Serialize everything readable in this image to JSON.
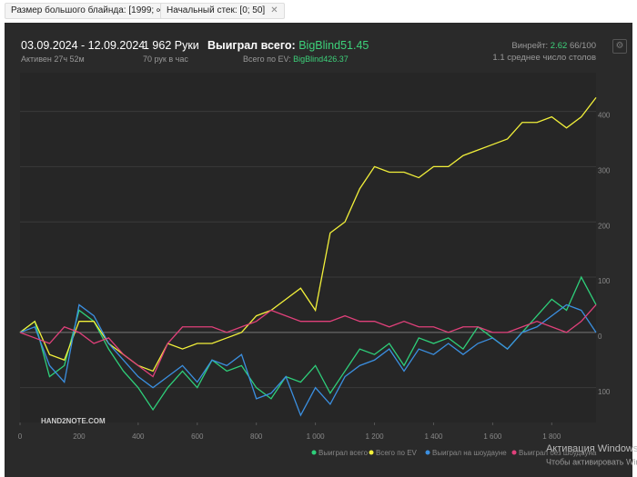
{
  "filters": [
    "Размер большого блайнда: [1999; ∞)",
    "Начальный стек: [0; 50]"
  ],
  "header": {
    "dates": "03.09.2024 - 12.09.2024",
    "active": "Активен 27ч 52м",
    "hands": "1 962 Руки",
    "rate": "70 рук в час",
    "won_label": "Выиграл всего:",
    "won_value": "BigBlind51.45",
    "ev_label": "Всего по EV:",
    "ev_value": "BigBlind426.37",
    "winrate_label": "Винрейт:",
    "winrate_value": "2.62",
    "winrate_range": "66/100",
    "tables": "1.1 среднее число столов"
  },
  "logo": "HAND2NOTE.COM",
  "watermark": [
    "Активация Windows",
    "Чтобы активировать Windows"
  ],
  "chart_data": {
    "type": "line",
    "x": [
      0,
      50,
      100,
      150,
      200,
      250,
      300,
      350,
      400,
      450,
      500,
      550,
      600,
      650,
      700,
      750,
      800,
      850,
      900,
      950,
      1000,
      1050,
      1100,
      1150,
      1200,
      1250,
      1300,
      1350,
      1400,
      1450,
      1500,
      1550,
      1600,
      1650,
      1700,
      1750,
      1800,
      1850,
      1900,
      1950
    ],
    "series": [
      {
        "name": "Выиграл всего",
        "color": "#2ecf7a",
        "values": [
          0,
          20,
          -80,
          -60,
          40,
          20,
          -30,
          -70,
          -100,
          -140,
          -100,
          -70,
          -100,
          -50,
          -70,
          -60,
          -100,
          -120,
          -80,
          -90,
          -60,
          -110,
          -70,
          -30,
          -40,
          -20,
          -60,
          -10,
          -20,
          -10,
          -30,
          10,
          -10,
          -30,
          0,
          30,
          60,
          40,
          100,
          50
        ]
      },
      {
        "name": "Всего по EV",
        "color": "#f2f03a",
        "values": [
          0,
          20,
          -40,
          -50,
          20,
          20,
          -20,
          -40,
          -60,
          -70,
          -20,
          -30,
          -20,
          -20,
          -10,
          0,
          30,
          40,
          60,
          80,
          40,
          180,
          200,
          260,
          300,
          290,
          290,
          280,
          300,
          300,
          320,
          330,
          340,
          350,
          380,
          380,
          390,
          370,
          390,
          425
        ]
      },
      {
        "name": "Выиграл на шоудауне",
        "color": "#3b8fe0",
        "values": [
          0,
          10,
          -60,
          -90,
          50,
          30,
          -20,
          -50,
          -80,
          -100,
          -80,
          -60,
          -90,
          -50,
          -60,
          -40,
          -120,
          -110,
          -80,
          -150,
          -100,
          -130,
          -80,
          -60,
          -50,
          -30,
          -70,
          -30,
          -40,
          -20,
          -40,
          -20,
          -10,
          -30,
          0,
          10,
          30,
          50,
          40,
          0
        ]
      },
      {
        "name": "Выиграл без шоудауна",
        "color": "#e0407a",
        "values": [
          0,
          -10,
          -20,
          10,
          0,
          -20,
          -10,
          -40,
          -60,
          -80,
          -20,
          10,
          10,
          10,
          0,
          10,
          20,
          40,
          30,
          20,
          20,
          20,
          30,
          20,
          20,
          10,
          20,
          10,
          10,
          0,
          10,
          10,
          0,
          0,
          10,
          20,
          10,
          0,
          20,
          50
        ]
      }
    ],
    "xlim": [
      0,
      1950
    ],
    "ylim": [
      -163,
      470
    ],
    "xticks": [
      0,
      200,
      400,
      600,
      800,
      {
        "value": 1000,
        "label": "1 000"
      },
      {
        "value": 1200,
        "label": "1 200"
      },
      {
        "value": 1400,
        "label": "1 400"
      },
      {
        "value": 1600,
        "label": "1 600"
      },
      {
        "value": 1800,
        "label": "1 800"
      }
    ],
    "yticks": [
      {
        "value": -100,
        "label": "100"
      },
      0,
      100,
      200,
      300,
      400
    ],
    "grid": true
  }
}
